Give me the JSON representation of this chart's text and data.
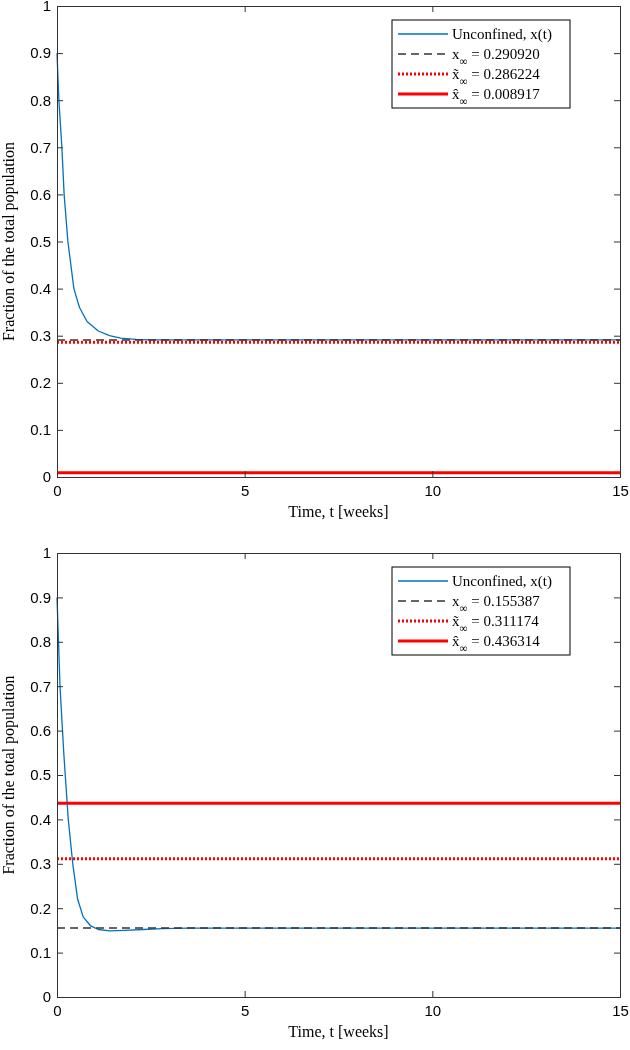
{
  "chart_data": [
    {
      "type": "line",
      "xlabel": "Time, t [weeks]",
      "ylabel": "Fraction of the total population",
      "xlim": [
        0,
        15
      ],
      "ylim": [
        0,
        1
      ],
      "xticks": [
        0,
        5,
        10,
        15
      ],
      "yticks": [
        0,
        0.1,
        0.2,
        0.3,
        0.4,
        0.5,
        0.6,
        0.7,
        0.8,
        0.9,
        1
      ],
      "grid": false,
      "legend": "top right",
      "series": [
        {
          "name": "Unconfined, x(t)",
          "color": "#0072bd",
          "line_style": "solid",
          "x": [
            0,
            0.05,
            0.13,
            0.19,
            0.29,
            0.45,
            0.6,
            0.8,
            1.1,
            1.4,
            1.7,
            2.1,
            2.5,
            3,
            15
          ],
          "values": [
            0.9,
            0.8,
            0.7,
            0.6,
            0.5,
            0.4,
            0.36,
            0.33,
            0.31,
            0.3,
            0.295,
            0.292,
            0.291,
            0.291,
            0.291
          ]
        },
        {
          "name": "x$_{∞}$ = 0.290920",
          "color": "#333333",
          "line_style": "dashed",
          "x": [
            0,
            15
          ],
          "values": [
            0.29092,
            0.29092
          ]
        },
        {
          "name": "x̃$_{∞}$ = 0.286224",
          "color": "#ff0000",
          "line_style": "dotted",
          "x": [
            0,
            15
          ],
          "values": [
            0.286224,
            0.286224
          ]
        },
        {
          "name": "x̂$_{∞}$ = 0.008917",
          "color": "#ff0000",
          "line_style": "solid",
          "x": [
            0,
            15
          ],
          "values": [
            0.008917,
            0.008917
          ]
        }
      ]
    },
    {
      "type": "line",
      "xlabel": "Time, t [weeks]",
      "ylabel": "Fraction of the total population",
      "xlim": [
        0,
        15
      ],
      "ylim": [
        0,
        1
      ],
      "xticks": [
        0,
        5,
        10,
        15
      ],
      "yticks": [
        0,
        0.1,
        0.2,
        0.3,
        0.4,
        0.5,
        0.6,
        0.7,
        0.8,
        0.9,
        1
      ],
      "grid": false,
      "legend": "top right",
      "series": [
        {
          "name": "Unconfined, x(t)",
          "color": "#0072bd",
          "line_style": "solid",
          "x": [
            0,
            0.08,
            0.18,
            0.3,
            0.42,
            0.55,
            0.7,
            0.9,
            1.1,
            1.4,
            1.8,
            2.3,
            2.8,
            3.5,
            15
          ],
          "values": [
            0.9,
            0.7,
            0.55,
            0.4,
            0.3,
            0.22,
            0.18,
            0.16,
            0.152,
            0.149,
            0.15,
            0.152,
            0.154,
            0.155,
            0.155
          ]
        },
        {
          "name": "x$_{∞}$ = 0.155387",
          "color": "#333333",
          "line_style": "dashed",
          "x": [
            0,
            15
          ],
          "values": [
            0.155387,
            0.155387
          ]
        },
        {
          "name": "x̃$_{∞}$ = 0.311174",
          "color": "#ff0000",
          "line_style": "dotted",
          "x": [
            0,
            15
          ],
          "values": [
            0.311174,
            0.311174
          ]
        },
        {
          "name": "x̂$_{∞}$ = 0.436314",
          "color": "#ff0000",
          "line_style": "solid",
          "x": [
            0,
            15
          ],
          "values": [
            0.436314,
            0.436314
          ]
        }
      ]
    }
  ]
}
